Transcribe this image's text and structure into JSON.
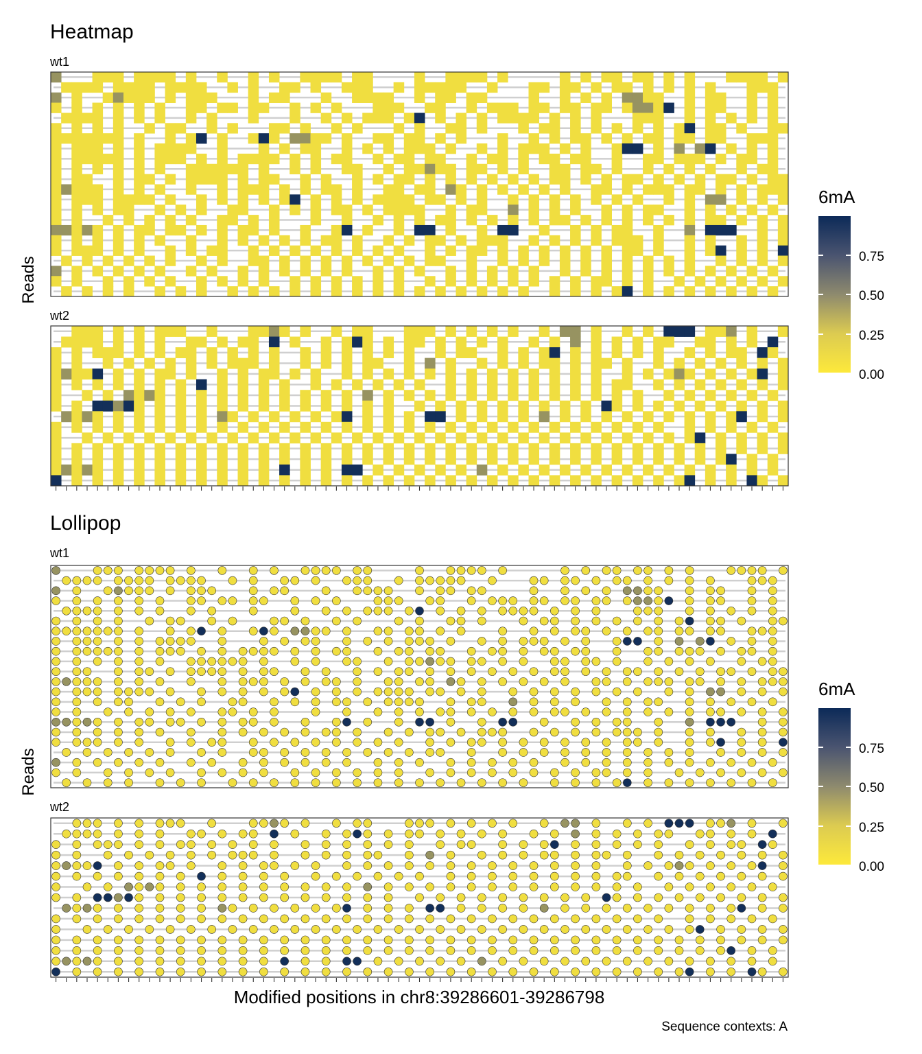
{
  "chart_data": [
    {
      "type": "heatmap",
      "title": "Heatmap",
      "ylabel": "Reads",
      "xlabel": "Modified positions in chr8:39286601-39286798",
      "panels": [
        {
          "name": "wt1",
          "rows": [
            "3...444.4444.4..4..4.4..4444.44....4..4444.4.....4.4.44.44.4.4...4444.4",
            ".4444.4444.4444..4.4..44.4..444..4.44444..4...44.44.4.44.4.4.4.4...444.",
            "3.4..43444.4.444...4.44...4..4444..4.44.44....4..4.4.4.3344..4.44..4.4.",
            "4.4.4.4.4.4..44.44.44..4.4.4...444..44..4.444.44.44.44.43340.4.44..4.4.",
            ".4444.4.4.4..4.4...4...4..4.4.444.40.4.4.4.4444.4.4.4...444..4.4.4.4.4.",
            "4.4.4.4..4.44..4.4...44.4..4.4...4.4..44.4...4.44.4.4.4.4.4.40.44.4..44",
            "4444444.4..4.40.4..404.3344.4..44.44.4.4...4..4.4.44.4.4.44.44.44..444.",
            "4.444.4.4.4444..4...4.4.44..4.4.4.444.4..4.4.444.4.4..400.4.3.30.4.4.4.",
            "4.44444.4.444.4.4.4444.4.4.44..4.44.44..4.44.4.44.44..4..44.444.4.44.4.",
            "4.4.4.4.4.4..444444.4..4.4..44..4.44344.44.4.4..44.44.4..4.4.4.4..4.44.",
            "4.44..4.44.4.4444.4.44..4.4..4.4.44.4.4.4.4.4.4.44.4.4.44.4.4.4.44.4.44",
            "43444.4.4.4..4..4.444.4.4.44.4..44.44.34.4.4.4.4.4..44.4.444.44.4.4.444",
            "4.444.4444.4..4.4.4.4.40.4.4.4.4444.44.4.4..4.4.4.4.4.4.4..4.4.33.4.4.4",
            "4.4.4.44..4.4.4..44..4.4.4.44.4.4444..4.44..3.4.4.4..4.4.44..4.4.4.4.4.",
            "4.4..4.4.4.4.4..44.4.4...4..4..4.4.4.44.4.4.4.4.44.4.4.4.4.4.4.44.4.4.4",
            "33434.4.44.44.4.4.44.4..4..40.4..4.00.4..4.00..4..4.4.44..4..3.000..4.4",
            "4.4.4.4.4.4..4..4.4.4.4.4.44.4..4.4.44.4.444..4.4.4.4.444.4..4.4..4.4.4",
            "4.444.4.4..4.4.44..4.4.4.4.4.4.4.4..4.4.44.4.4.4.4.4.4.44.4..4.40.4.4.0",
            ".4.4.4.4.4.4..4.4..44.4.4.4.4.4.4.4.44..4..4.4.4.4.4.4.4.4.4.4..4.4.4.4",
            "3.4.4.4.4.4..4.4..4.4.4.4.4.4..4.4.4..4.4.4.4.4..4.4.4.4.4.4.4.4.4.4.4.",
            "4.4..4.4.4.4..4.4.4.4..4.4.4.4.4.4..4.4.4.4.4.4.4.4.44.4.4..4.4.4.4.4.4",
            ".4.4.4.4..4.4.4..4.4.4.4.4.4.4.4.4.4.4.4.4.4.4..4.4.4.40.4.4.4.4.4.4.4."
          ]
        },
        {
          "name": "wt2",
          "rows": [
            "..444.4.4.444..4...4434.4..4.44...444.4.4.4.4..4.33.4..4.4.000.443.4..4",
            ".4444.4.4.4..44.4.44.0.4..4.404.4.44.4.4.4.4..4.4.3.4.4.4.44..44.4.4.0.",
            "4.4.444.4.4.44.4.4.4.4..4.4.4.4.4.4..4.44..4.4.40.4.4.4.4.4..4.4.44.04.",
            "4.4..4.4.4.4.4.4.444.4..4.4.4.44..4.3.4..4.4.4.44.4.44.4..4.4.4.4.4.4.4",
            "43440.4.4.44.4..4.4.44.4.4..4.4.4.4.4.4.4.4.4.4.4.4.4..4.4.434.4.4.40.4",
            "4.4.4.4.4.4.4.0.4.4.4.4..4.4.4.4.4.4..4.4.4.4.4.4.4.4.44..4.4.4.4.4.4.4",
            "4..4.4.3434.4.4.4.4.4.4.4.4.4.3.4.4.4.4.4.4.4.4.4.4.4.4.4..4.4.4.4.4.4.",
            "4.4.00304.4.4.4.4.4.4.4.4.4.4.4.4..4.4.4.4.4.4.4.4.4.04.4.4.4.4.4.4.4.4",
            ".3434.4.4.4.4.4.34.4.4.4.4.40.4.4.4.00.4.4.4.4.3.4.4.4.4.4.4.4.4.40.4.4",
            "4.4.4.4.4.4.4.4.4.4.4.4.4.4.4.4.4.4.4.4.4.4.4.4.4.4.4.4.4.4..4.4.4.4.4.",
            "4..4.4.4.4.4.4.4.4.4.4.4.4.4.4.4.4.4.4.4.4.4.4.4.4.4.4.4.4.4.40.4.4.4.4",
            "4.4.4.4.4.4.4.4.4.4.4.4.4.4.4.4.4.4.4.4.4.4.4.4.4.4.4.4.4.4.4.4.4.4.4.4",
            "4.4.4.4.4.4.4.4.4.4.4.4.4.4.4.4.4.4.4.4.4.4.4.4.4.4.4.4.4.4.4.4.40.4.4.",
            "43434.4.4.4.4.4.4.4.4.0.4.4.00.4.4.4.4.4.3.4.4.4.4.4.4.4.4.4.4.4.4.4.4.",
            "0.4.4.4.4.4.4.4.4.4.4.4.4.4.4.4.4.4.4.4.4.4.4.4.4.4.4.4.4.4.40.4.4.04.4"
          ]
        }
      ],
      "color_scale": {
        "title": "6mA",
        "ticks": [
          "0.00",
          "0.25",
          "0.50",
          "0.75"
        ],
        "low": "#FDE93B",
        "mid": "#7E7D6B",
        "high": "#0C2A58",
        "domain": [
          0,
          1
        ]
      }
    },
    {
      "type": "scatter",
      "title": "Lollipop",
      "ylabel": "Reads",
      "xlabel": "Modified positions in chr8:39286601-39286798",
      "panels_same_as": "Heatmap",
      "color_scale": {
        "title": "6mA",
        "ticks": [
          "0.00",
          "0.25",
          "0.50",
          "0.75"
        ]
      }
    }
  ],
  "caption": "Sequence contexts: A",
  "value_levels": {
    "0": 0.97,
    "1": 0.8,
    "2": 0.6,
    "3": 0.4,
    "4": 0.05
  }
}
